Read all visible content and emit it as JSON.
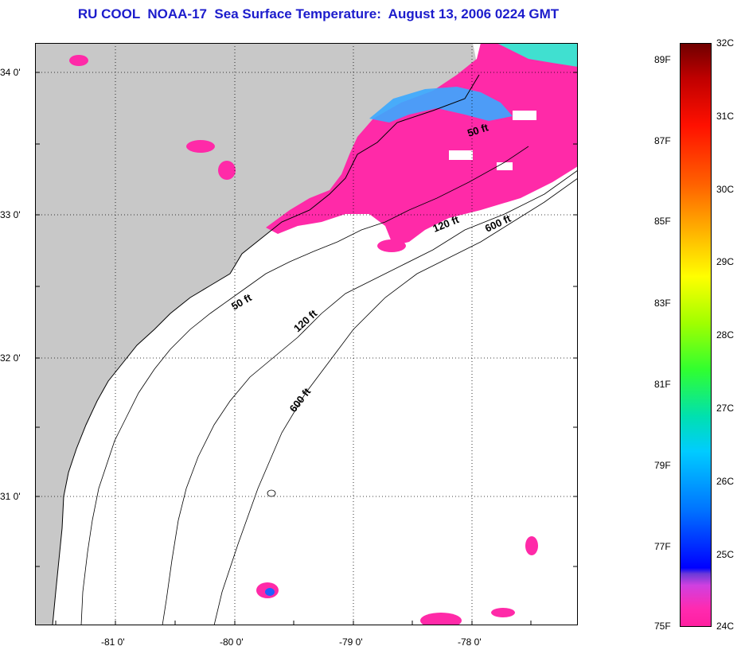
{
  "title": "RU COOL  NOAA-17  Sea Surface Temperature:  August 13, 2006 0224 GMT",
  "map": {
    "lat_ticks": [
      "34 0'",
      "33 0'",
      "32 0'",
      "31 0'"
    ],
    "lon_ticks": [
      "-81 0'",
      "-80 0'",
      "-79 0'",
      "-78 0'"
    ],
    "contour_labels": [
      "50 ft",
      "120 ft",
      "600 ft",
      "50 ft",
      "120 ft",
      "600 ft"
    ],
    "colors": {
      "land": "#c8c8c8",
      "ocean": "#ffffff",
      "warm_water": "#ff2aa8",
      "cool_water": "#20a0ff",
      "grid": "#000000"
    }
  },
  "colorbar": {
    "fahrenheit": [
      "89F",
      "87F",
      "85F",
      "83F",
      "81F",
      "79F",
      "77F",
      "75F"
    ],
    "celsius": [
      "32C",
      "31C",
      "30C",
      "29C",
      "28C",
      "27C",
      "26C",
      "25C",
      "24C"
    ]
  }
}
